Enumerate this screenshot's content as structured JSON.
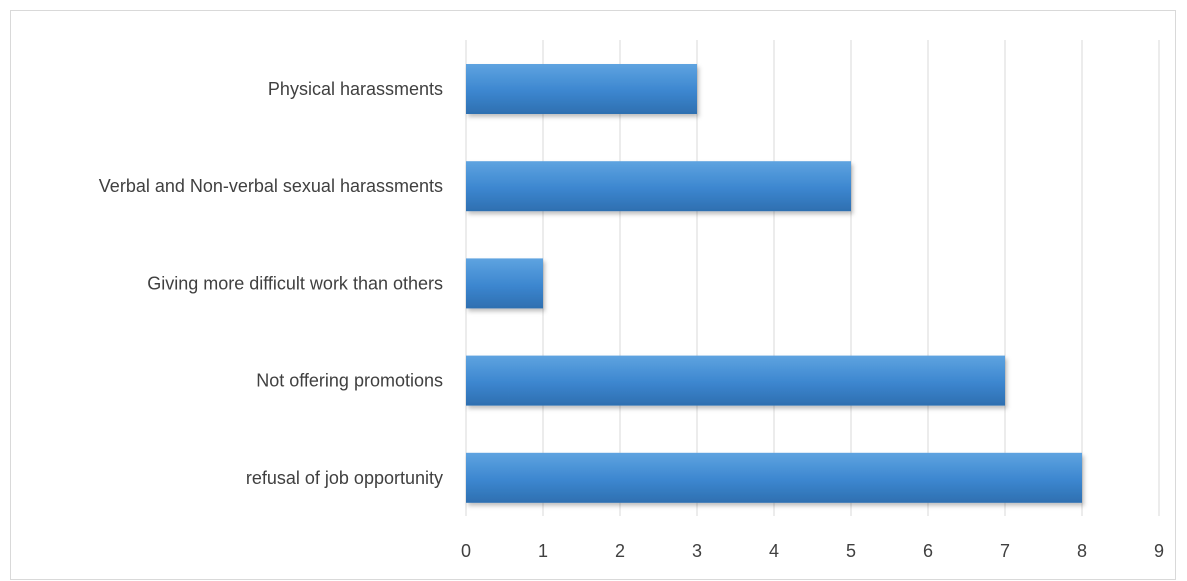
{
  "chart_data": {
    "type": "bar",
    "orientation": "horizontal",
    "categories": [
      "Physical harassments",
      "Verbal and Non-verbal sexual harassments",
      "Giving more difficult work than others",
      "Not offering promotions",
      "refusal of job opportunity"
    ],
    "values": [
      3,
      5,
      1,
      7,
      8
    ],
    "title": "",
    "xlabel": "",
    "ylabel": "",
    "xlim": [
      0,
      9
    ],
    "x_ticks": [
      "0",
      "1",
      "2",
      "3",
      "4",
      "5",
      "6",
      "7",
      "8",
      "9"
    ],
    "grid": "vertical",
    "legend": "none",
    "colors": {
      "bar_top": "#5b9bd5",
      "bar_bottom": "#2e75b6",
      "grid": "#d9d9d9",
      "text": "#404040"
    }
  }
}
